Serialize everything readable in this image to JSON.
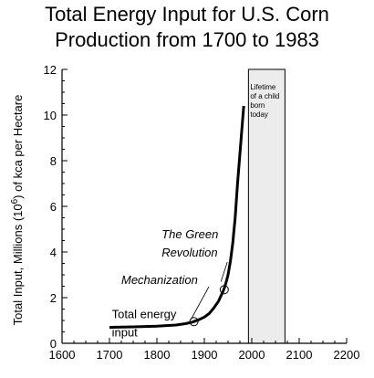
{
  "chart_data": {
    "type": "line",
    "title_lines": [
      "Total Energy Input for U.S. Corn",
      "Production from 1700 to 1983"
    ],
    "ylabel_parts": [
      "Total Input, Millions (10",
      "6",
      ") of kca per Hectare"
    ],
    "xlim": [
      1600,
      2200
    ],
    "ylim": [
      0,
      12
    ],
    "x_ticks": [
      1600,
      1700,
      1800,
      1900,
      2000,
      2100,
      2200
    ],
    "y_ticks": [
      0,
      2,
      4,
      6,
      8,
      10,
      12
    ],
    "series": [
      {
        "x": [
          1700,
          1750,
          1800,
          1840,
          1860,
          1875,
          1880,
          1890,
          1900,
          1910,
          1920,
          1930,
          1940,
          1945,
          1950,
          1955,
          1960,
          1965,
          1970,
          1975,
          1980,
          1983
        ],
        "y": [
          0.7,
          0.72,
          0.75,
          0.8,
          0.86,
          0.93,
          0.97,
          1.05,
          1.15,
          1.3,
          1.55,
          1.85,
          2.3,
          2.6,
          3.0,
          3.6,
          4.4,
          5.5,
          7.0,
          8.3,
          9.6,
          10.4
        ]
      }
    ],
    "shaded_region": {
      "x": [
        1993,
        2070
      ],
      "label_lines": [
        "Lifetime",
        "of a child",
        "born",
        "today"
      ],
      "color": "#ececec"
    },
    "markers": [
      {
        "x": 1878,
        "y": 0.95
      },
      {
        "x": 1942,
        "y": 2.35
      }
    ],
    "annotations": [
      {
        "lines": [
          "Total energy",
          "input"
        ],
        "x": 1705,
        "y": 1.1,
        "style": "normal"
      },
      {
        "lines": [
          "Mechanization"
        ],
        "x": 1725,
        "y": 2.6,
        "style": "italic",
        "arrow_to": [
          1872,
          1.05
        ]
      },
      {
        "lines": [
          "The Green",
          "Revolution"
        ],
        "x": 1810,
        "y": 4.6,
        "style": "italic",
        "arrow_to": [
          1935,
          2.7
        ]
      }
    ]
  }
}
